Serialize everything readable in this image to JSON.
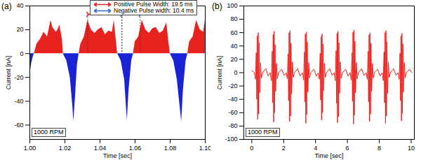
{
  "chart_data": [
    {
      "type": "area",
      "panel_label": "(a)",
      "x_label": "Time [sec]",
      "y_label": "Current [nA]",
      "annotations": [
        "1000 RPM"
      ],
      "colors": [
        "#e8231f",
        "#1a22d6"
      ],
      "xlim": [
        1.0,
        1.1
      ],
      "xticks": [
        {
          "value": 1.0,
          "label": "1.00"
        },
        {
          "value": 1.02,
          "label": "1.02"
        },
        {
          "value": 1.04,
          "label": "1.04"
        },
        {
          "value": 1.06,
          "label": "1.06"
        },
        {
          "value": 1.08,
          "label": "1.08"
        },
        {
          "value": 1.1,
          "label": "1.10"
        }
      ],
      "ylim": [
        -72,
        40
      ],
      "yticks": [
        -60,
        -40,
        -20,
        0,
        20,
        40
      ],
      "pulse_widths": [
        {
          "label": "Positive Pulse Width: 19.5 ms",
          "color": "#e8231f",
          "x": [
            1.033,
            1.0525
          ],
          "y": 33
        },
        {
          "label": "Negative Pulse width: 10.4 ms",
          "color": "#2f6fd0",
          "x": [
            1.0525,
            1.0629
          ],
          "y": 33
        }
      ],
      "x": [
        1.0,
        1.001,
        1.002,
        1.0025,
        1.004,
        1.006,
        1.008,
        1.01,
        1.012,
        1.013,
        1.015,
        1.016,
        1.017,
        1.0185,
        1.019,
        1.021,
        1.023,
        1.0245,
        1.025,
        1.026,
        1.027,
        1.028,
        1.029,
        1.031,
        1.033,
        1.035,
        1.037,
        1.039,
        1.041,
        1.043,
        1.045,
        1.047,
        1.048,
        1.049,
        1.05,
        1.052,
        1.054,
        1.0555,
        1.0565,
        1.058,
        1.059,
        1.06,
        1.062,
        1.064,
        1.066,
        1.068,
        1.07,
        1.072,
        1.074,
        1.076,
        1.078,
        1.079,
        1.08,
        1.082,
        1.084,
        1.0865,
        1.0875,
        1.089,
        1.09,
        1.091,
        1.093,
        1.095,
        1.097,
        1.099,
        1.1
      ],
      "values": [
        -18,
        -8,
        -2,
        0,
        8,
        12,
        18,
        14,
        28,
        22,
        18,
        20,
        24,
        12,
        0,
        -6,
        -20,
        -45,
        -57,
        -35,
        -10,
        0,
        8,
        14,
        28,
        20,
        17,
        20,
        22,
        16,
        19,
        18,
        28,
        14,
        0,
        -6,
        -22,
        -56,
        -30,
        -6,
        0,
        10,
        14,
        28,
        20,
        17,
        21,
        22,
        17,
        19,
        26,
        12,
        0,
        -6,
        -22,
        -57,
        -30,
        -6,
        0,
        10,
        14,
        28,
        20,
        18,
        28
      ]
    },
    {
      "type": "line",
      "panel_label": "(b)",
      "x_label": "Time [sec]",
      "y_label": "Current [nA]",
      "annotations": [
        "1000 RPM"
      ],
      "color": "#f0201c",
      "xlim": [
        -0.5,
        10.2
      ],
      "xticks": [
        0,
        2,
        4,
        6,
        8,
        10
      ],
      "ylim": [
        -100,
        100
      ],
      "yticks": [
        -100,
        -80,
        -60,
        -40,
        -20,
        0,
        20,
        40,
        60,
        80,
        100
      ],
      "x": [
        0.0,
        0.16,
        0.23,
        0.28,
        0.31,
        0.34,
        0.37,
        0.4,
        0.43,
        0.46,
        0.5,
        0.55,
        0.6,
        0.68,
        0.88,
        1.03,
        1.16,
        1.23,
        1.28,
        1.31,
        1.34,
        1.37,
        1.4,
        1.43,
        1.46,
        1.5,
        1.55,
        1.6,
        1.68,
        1.88,
        2.03,
        2.16,
        2.23,
        2.28,
        2.31,
        2.34,
        2.37,
        2.4,
        2.43,
        2.46,
        2.5,
        2.55,
        2.6,
        2.68,
        2.88,
        3.03,
        3.18,
        3.25,
        3.3,
        3.33,
        3.36,
        3.39,
        3.42,
        3.45,
        3.48,
        3.52,
        3.57,
        3.62,
        3.7,
        3.9,
        4.05,
        4.17,
        4.24,
        4.29,
        4.32,
        4.35,
        4.38,
        4.41,
        4.44,
        4.47,
        4.51,
        4.56,
        4.61,
        4.69,
        4.89,
        5.04,
        5.17,
        5.24,
        5.29,
        5.32,
        5.35,
        5.38,
        5.41,
        5.44,
        5.47,
        5.51,
        5.56,
        5.61,
        5.69,
        5.89,
        6.04,
        6.17,
        6.24,
        6.29,
        6.32,
        6.35,
        6.38,
        6.41,
        6.44,
        6.47,
        6.51,
        6.56,
        6.61,
        6.69,
        6.89,
        7.04,
        7.18,
        7.25,
        7.3,
        7.33,
        7.36,
        7.39,
        7.42,
        7.45,
        7.48,
        7.52,
        7.57,
        7.62,
        7.7,
        7.9,
        8.05,
        8.18,
        8.25,
        8.3,
        8.33,
        8.36,
        8.39,
        8.42,
        8.45,
        8.48,
        8.52,
        8.57,
        8.62,
        8.7,
        8.9,
        9.05,
        9.18,
        9.25,
        9.3,
        9.33,
        9.36,
        9.39,
        9.42,
        9.45,
        9.48,
        9.52,
        9.57,
        9.62,
        9.7,
        9.9,
        10.05
      ],
      "values": [
        3,
        0,
        -10,
        30,
        -40,
        55,
        -70,
        60,
        -62,
        45,
        -30,
        15,
        -8,
        0,
        6,
        -5,
        0,
        -12,
        32,
        -45,
        57,
        -74,
        62,
        -60,
        42,
        -28,
        14,
        -9,
        0,
        5,
        -4,
        0,
        -9,
        28,
        -42,
        60,
        -73,
        63,
        -65,
        44,
        -32,
        16,
        -7,
        0,
        6,
        -5,
        0,
        -11,
        31,
        -44,
        58,
        -76,
        61,
        -63,
        46,
        -29,
        15,
        -8,
        0,
        5,
        -5,
        0,
        -10,
        29,
        -41,
        54,
        -71,
        58,
        -60,
        43,
        -27,
        14,
        -7,
        0,
        6,
        -4,
        0,
        -12,
        33,
        -46,
        59,
        -75,
        62,
        -66,
        45,
        -31,
        16,
        -8,
        0,
        5,
        -5,
        0,
        -11,
        30,
        -43,
        61,
        -77,
        64,
        -64,
        47,
        -30,
        15,
        -9,
        0,
        6,
        -4,
        0,
        -10,
        32,
        -44,
        57,
        -73,
        60,
        -62,
        44,
        -28,
        14,
        -8,
        0,
        5,
        -5,
        0,
        -12,
        31,
        -45,
        60,
        -76,
        63,
        -65,
        46,
        -31,
        16,
        -7,
        0,
        6,
        -4,
        0,
        -10,
        29,
        -42,
        55,
        -72,
        59,
        -61,
        43,
        -29,
        15,
        -8,
        0,
        5,
        0
      ]
    }
  ]
}
